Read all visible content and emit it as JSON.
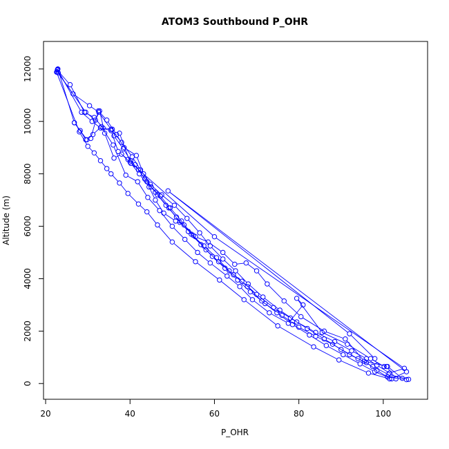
{
  "chart_data": {
    "type": "scatter",
    "title": "ATOM3 Southbound P_OHR",
    "xlabel": "P_OHR",
    "ylabel": "Altitude (m)",
    "xlim": [
      19.5,
      110.5
    ],
    "ylim": [
      -600,
      13050
    ],
    "x_ticks": [
      20,
      40,
      60,
      80,
      100
    ],
    "y_ticks": [
      0,
      2000,
      4000,
      6000,
      8000,
      10000,
      12000
    ],
    "grid": false,
    "legend": "none",
    "style": "points connected by lines",
    "color": "#0000ff",
    "series": [
      {
        "points": [
          [
            22.8,
            11950
          ],
          [
            25.8,
            11400
          ],
          [
            29.2,
            10350
          ],
          [
            31.5,
            10150
          ],
          [
            33.6,
            9750
          ],
          [
            35.8,
            9700
          ],
          [
            36.2,
            9450
          ],
          [
            38.4,
            8950
          ],
          [
            40.2,
            8500
          ],
          [
            42.0,
            8150
          ],
          [
            44.0,
            7700
          ],
          [
            46.0,
            7300
          ],
          [
            48.5,
            6800
          ],
          [
            51.0,
            6350
          ],
          [
            53.8,
            5800
          ],
          [
            56.8,
            5300
          ],
          [
            59.5,
            4850
          ],
          [
            62.5,
            4400
          ],
          [
            65.5,
            3950
          ],
          [
            68.5,
            3500
          ],
          [
            72.0,
            3050
          ],
          [
            76.0,
            2600
          ],
          [
            80.0,
            2150
          ],
          [
            84.0,
            1800
          ],
          [
            88.0,
            1500
          ],
          [
            92.0,
            1100
          ],
          [
            96.0,
            800
          ],
          [
            98.5,
            500
          ],
          [
            101.0,
            250
          ],
          [
            105.5,
            150
          ]
        ]
      },
      {
        "points": [
          [
            22.9,
            12000
          ],
          [
            26.8,
            9950
          ],
          [
            28.2,
            9650
          ],
          [
            29.5,
            9300
          ],
          [
            30.7,
            9350
          ],
          [
            32.5,
            10400
          ],
          [
            34.5,
            10050
          ],
          [
            36.8,
            9500
          ],
          [
            38.6,
            9000
          ],
          [
            41.5,
            8700
          ],
          [
            43.2,
            8000
          ],
          [
            45.0,
            7500
          ],
          [
            47.2,
            7150
          ],
          [
            49.5,
            6700
          ],
          [
            52.2,
            6200
          ],
          [
            54.5,
            5700
          ],
          [
            57.5,
            5250
          ],
          [
            60.5,
            4800
          ],
          [
            63.5,
            4300
          ],
          [
            66.5,
            3900
          ],
          [
            70.0,
            3400
          ],
          [
            74.0,
            2900
          ],
          [
            78.0,
            2500
          ],
          [
            82.0,
            2100
          ],
          [
            86.0,
            1700
          ],
          [
            90.0,
            1300
          ],
          [
            94.0,
            950
          ],
          [
            97.5,
            650
          ],
          [
            101.2,
            350
          ],
          [
            106.0,
            160
          ]
        ]
      },
      {
        "points": [
          [
            22.7,
            11900
          ],
          [
            26.5,
            11050
          ],
          [
            30.4,
            10600
          ],
          [
            32.6,
            10350
          ],
          [
            35.5,
            9700
          ],
          [
            38.0,
            9200
          ],
          [
            40.5,
            8650
          ],
          [
            42.5,
            8150
          ],
          [
            44.8,
            7600
          ],
          [
            47.5,
            7200
          ],
          [
            50.5,
            6800
          ],
          [
            53.5,
            6300
          ],
          [
            56.5,
            5750
          ],
          [
            59.0,
            5250
          ],
          [
            62.0,
            4750
          ],
          [
            65.0,
            4300
          ],
          [
            68.0,
            3800
          ],
          [
            71.5,
            3300
          ],
          [
            75.5,
            2800
          ],
          [
            79.5,
            2350
          ],
          [
            84.0,
            1950
          ],
          [
            88.5,
            1600
          ],
          [
            92.5,
            1250
          ],
          [
            96.0,
            950
          ],
          [
            98.5,
            700
          ],
          [
            101.5,
            400
          ],
          [
            105.0,
            580
          ],
          [
            60.0,
            5600
          ],
          [
            40.0,
            8450
          ],
          [
            37.5,
            9550
          ]
        ]
      },
      {
        "points": [
          [
            22.8,
            11980
          ],
          [
            28.5,
            10350
          ],
          [
            31.0,
            10000
          ],
          [
            33.0,
            9750
          ],
          [
            35.5,
            9650
          ],
          [
            37.2,
            8850
          ],
          [
            39.5,
            8550
          ],
          [
            41.2,
            8350
          ],
          [
            43.5,
            7800
          ],
          [
            46.5,
            7200
          ],
          [
            49.2,
            6700
          ],
          [
            51.8,
            6150
          ],
          [
            55.0,
            5650
          ],
          [
            58.0,
            5100
          ],
          [
            61.0,
            4650
          ],
          [
            64.5,
            4150
          ],
          [
            67.8,
            3700
          ],
          [
            71.2,
            3150
          ],
          [
            74.8,
            2700
          ],
          [
            78.5,
            2250
          ],
          [
            82.5,
            1850
          ],
          [
            86.5,
            1450
          ],
          [
            90.5,
            1100
          ],
          [
            94.5,
            750
          ],
          [
            98.0,
            450
          ],
          [
            102.0,
            180
          ],
          [
            105.5,
            450
          ],
          [
            49.0,
            7350
          ],
          [
            92.0,
            1900
          ],
          [
            98.0,
            950
          ]
        ]
      },
      {
        "points": [
          [
            22.6,
            11880
          ],
          [
            28.0,
            9600
          ],
          [
            30.0,
            9050
          ],
          [
            31.5,
            8800
          ],
          [
            33.0,
            8500
          ],
          [
            34.5,
            8200
          ],
          [
            35.5,
            8000
          ],
          [
            37.5,
            7650
          ],
          [
            39.5,
            7250
          ],
          [
            42.0,
            6850
          ],
          [
            44.0,
            6550
          ],
          [
            46.5,
            6050
          ],
          [
            50.0,
            5400
          ],
          [
            55.5,
            4650
          ],
          [
            61.2,
            3950
          ],
          [
            67.0,
            3200
          ],
          [
            75.0,
            2200
          ],
          [
            83.5,
            1400
          ],
          [
            89.5,
            900
          ],
          [
            96.5,
            400
          ],
          [
            101.5,
            180
          ]
        ]
      },
      {
        "points": [
          [
            26.8,
            9950
          ],
          [
            29.8,
            9300
          ],
          [
            31.2,
            9500
          ],
          [
            33.2,
            9800
          ],
          [
            36.0,
            9100
          ],
          [
            39.0,
            7950
          ],
          [
            41.8,
            7700
          ],
          [
            44.2,
            7100
          ],
          [
            47.0,
            6600
          ],
          [
            50.0,
            6000
          ],
          [
            53.0,
            5500
          ],
          [
            56.0,
            5000
          ],
          [
            59.0,
            4600
          ],
          [
            63.0,
            4100
          ],
          [
            66.0,
            3700
          ],
          [
            69.0,
            3200
          ],
          [
            73.0,
            2700
          ],
          [
            77.5,
            2300
          ],
          [
            81.0,
            3000
          ],
          [
            79.5,
            3250
          ],
          [
            85.5,
            1950
          ],
          [
            91.5,
            1500
          ],
          [
            97.0,
            950
          ],
          [
            100.2,
            650
          ],
          [
            100.8,
            650
          ],
          [
            103.0,
            180
          ]
        ]
      },
      {
        "points": [
          [
            23.0,
            11850
          ],
          [
            29.5,
            10350
          ],
          [
            31.8,
            10050
          ],
          [
            32.8,
            10400
          ],
          [
            34.0,
            9550
          ],
          [
            36.2,
            8600
          ],
          [
            38.0,
            8750
          ],
          [
            40.2,
            8400
          ],
          [
            42.2,
            8000
          ],
          [
            44.5,
            7500
          ],
          [
            46.0,
            7000
          ],
          [
            48.0,
            6500
          ],
          [
            50.8,
            6200
          ],
          [
            52.8,
            6050
          ],
          [
            55.5,
            5600
          ],
          [
            58.5,
            5400
          ],
          [
            62.0,
            5000
          ],
          [
            64.8,
            4550
          ],
          [
            67.5,
            4600
          ],
          [
            70.0,
            4300
          ],
          [
            72.5,
            3800
          ],
          [
            76.5,
            3150
          ],
          [
            80.5,
            2550
          ],
          [
            86.0,
            2000
          ],
          [
            91.0,
            1700
          ],
          [
            95.5,
            850
          ],
          [
            101.0,
            650
          ],
          [
            104.5,
            200
          ]
        ]
      }
    ]
  }
}
